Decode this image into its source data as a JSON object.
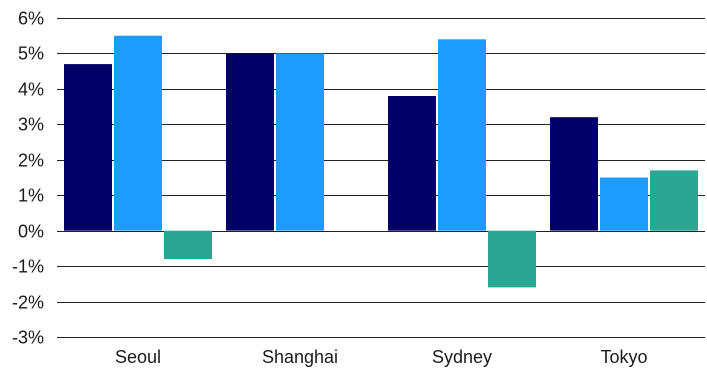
{
  "chart_data": {
    "type": "bar",
    "title": "",
    "xlabel": "",
    "ylabel": "",
    "categories": [
      "Seoul",
      "Shanghai",
      "Sydney",
      "Tokyo"
    ],
    "series": [
      {
        "values": [
          4.7,
          5.0,
          3.8,
          3.2
        ],
        "color": "#000066"
      },
      {
        "values": [
          5.5,
          5.0,
          5.4,
          1.5
        ],
        "color": "#1e9bff"
      },
      {
        "values": [
          -0.8,
          null,
          -1.6,
          1.7
        ],
        "color": "#2aa693"
      }
    ],
    "ylim": [
      -3,
      6
    ],
    "yticks": [
      6,
      5,
      4,
      3,
      2,
      1,
      0,
      -1,
      -2,
      -3
    ],
    "ytick_labels": [
      "6%",
      "5%",
      "4%",
      "3%",
      "2%",
      "1%",
      "0%",
      "-1%",
      "-2%",
      "-3%"
    ],
    "grid": true,
    "legend": "none"
  }
}
